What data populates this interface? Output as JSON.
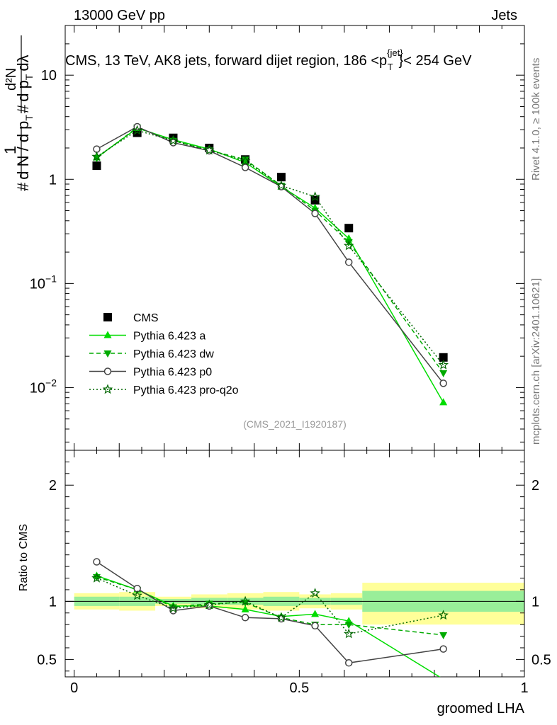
{
  "header": {
    "left": "13000 GeV pp",
    "right": "Jets"
  },
  "side_labels": {
    "rivet": "Rivet 4.1.0, ≥ 100k events",
    "mcplots": "mcplots.cern.ch [arXiv:2401.10621]"
  },
  "analysis_id": "(CMS_2021_I1920187)",
  "colors": {
    "cms": "#000000",
    "a": "#00dd00",
    "dw": "#00aa00",
    "p0": "#444444",
    "proq2o": "#006600",
    "band_inner": "#99ee99",
    "band_outer": "#ffff99"
  },
  "chart_data": [
    {
      "type": "scatter",
      "scale": "log",
      "title": "CMS, 13 TeV, AK8 jets, forward dijet region, 186 <p",
      "title_sup": "{jet}",
      "title_sub": "T",
      "title_tail": "}< 254 GeV",
      "ylabel": "1/dN/dpT  d²N/dpT dλ",
      "ylim": [
        0.0025,
        30
      ],
      "xlim": [
        -0.02,
        1.0
      ],
      "y_ticks": [
        {
          "value": 0.01,
          "base": "10",
          "exp": "−2"
        },
        {
          "value": 0.1,
          "base": "10",
          "exp": "−1"
        },
        {
          "value": 1,
          "base": "1",
          "exp": ""
        },
        {
          "value": 10,
          "base": "10",
          "exp": ""
        }
      ],
      "legend": [
        "CMS",
        "Pythia 6.423 a",
        "Pythia 6.423 dw",
        "Pythia 6.423 p0",
        "Pythia 6.423 pro-q2o"
      ],
      "x": [
        0.05,
        0.14,
        0.22,
        0.3,
        0.38,
        0.46,
        0.535,
        0.61,
        0.82
      ],
      "series": [
        {
          "name": "CMS",
          "values": [
            1.35,
            2.8,
            2.5,
            2.0,
            1.55,
            1.05,
            0.63,
            0.34,
            0.0195
          ]
        },
        {
          "name": "Pythia 6.423 a",
          "values": [
            1.62,
            3.1,
            2.4,
            1.95,
            1.45,
            0.85,
            0.53,
            0.27,
            0.0072
          ]
        },
        {
          "name": "Pythia 6.423 dw",
          "values": [
            1.6,
            3.15,
            2.35,
            1.9,
            1.55,
            0.87,
            0.5,
            0.25,
            0.0138
          ]
        },
        {
          "name": "Pythia 6.423 p0",
          "values": [
            1.95,
            3.2,
            2.25,
            1.88,
            1.3,
            0.85,
            0.47,
            0.16,
            0.011
          ]
        },
        {
          "name": "Pythia 6.423 pro-q2o",
          "values": [
            1.65,
            2.95,
            2.35,
            1.9,
            1.5,
            0.87,
            0.68,
            0.23,
            0.0165
          ]
        }
      ]
    },
    {
      "type": "line",
      "ylabel": "Ratio to CMS",
      "xlabel": "groomed LHA",
      "ylim": [
        0.35,
        2.3
      ],
      "xlim": [
        -0.02,
        1.0
      ],
      "y_ticks": [
        "0.5",
        "1",
        "2"
      ],
      "x_ticks": [
        "0",
        "0.5",
        "1"
      ],
      "x": [
        0.05,
        0.14,
        0.22,
        0.3,
        0.38,
        0.46,
        0.535,
        0.61,
        0.82
      ],
      "bands": [
        {
          "x0": 0.0,
          "x1": 0.1,
          "inner": [
            0.96,
            1.04
          ],
          "outer": [
            0.93,
            1.07
          ]
        },
        {
          "x0": 0.1,
          "x1": 0.18,
          "inner": [
            0.96,
            1.04
          ],
          "outer": [
            0.92,
            1.08
          ]
        },
        {
          "x0": 0.18,
          "x1": 0.26,
          "inner": [
            0.98,
            1.02
          ],
          "outer": [
            0.96,
            1.04
          ]
        },
        {
          "x0": 0.26,
          "x1": 0.34,
          "inner": [
            0.97,
            1.03
          ],
          "outer": [
            0.94,
            1.06
          ]
        },
        {
          "x0": 0.34,
          "x1": 0.42,
          "inner": [
            0.97,
            1.03
          ],
          "outer": [
            0.93,
            1.07
          ]
        },
        {
          "x0": 0.42,
          "x1": 0.5,
          "inner": [
            0.96,
            1.04
          ],
          "outer": [
            0.92,
            1.08
          ]
        },
        {
          "x0": 0.5,
          "x1": 0.57,
          "inner": [
            0.97,
            1.03
          ],
          "outer": [
            0.94,
            1.06
          ]
        },
        {
          "x0": 0.57,
          "x1": 0.64,
          "inner": [
            0.97,
            1.03
          ],
          "outer": [
            0.93,
            1.07
          ]
        },
        {
          "x0": 0.64,
          "x1": 1.0,
          "inner": [
            0.91,
            1.09
          ],
          "outer": [
            0.8,
            1.16
          ]
        }
      ],
      "series": [
        {
          "name": "Pythia 6.423 a",
          "values": [
            1.22,
            1.1,
            0.96,
            0.96,
            0.93,
            0.87,
            0.89,
            0.83,
            0.33
          ]
        },
        {
          "name": "Pythia 6.423 dw",
          "values": [
            1.21,
            1.1,
            0.95,
            0.98,
            0.99,
            0.86,
            0.8,
            0.8,
            0.71
          ]
        },
        {
          "name": "Pythia 6.423 p0",
          "values": [
            1.34,
            1.11,
            0.92,
            0.96,
            0.86,
            0.85,
            0.79,
            0.47,
            0.59
          ]
        },
        {
          "name": "Pythia 6.423 pro-q2o",
          "values": [
            1.2,
            1.05,
            0.94,
            0.97,
            1.0,
            0.86,
            1.07,
            0.72,
            0.88
          ]
        }
      ]
    }
  ]
}
